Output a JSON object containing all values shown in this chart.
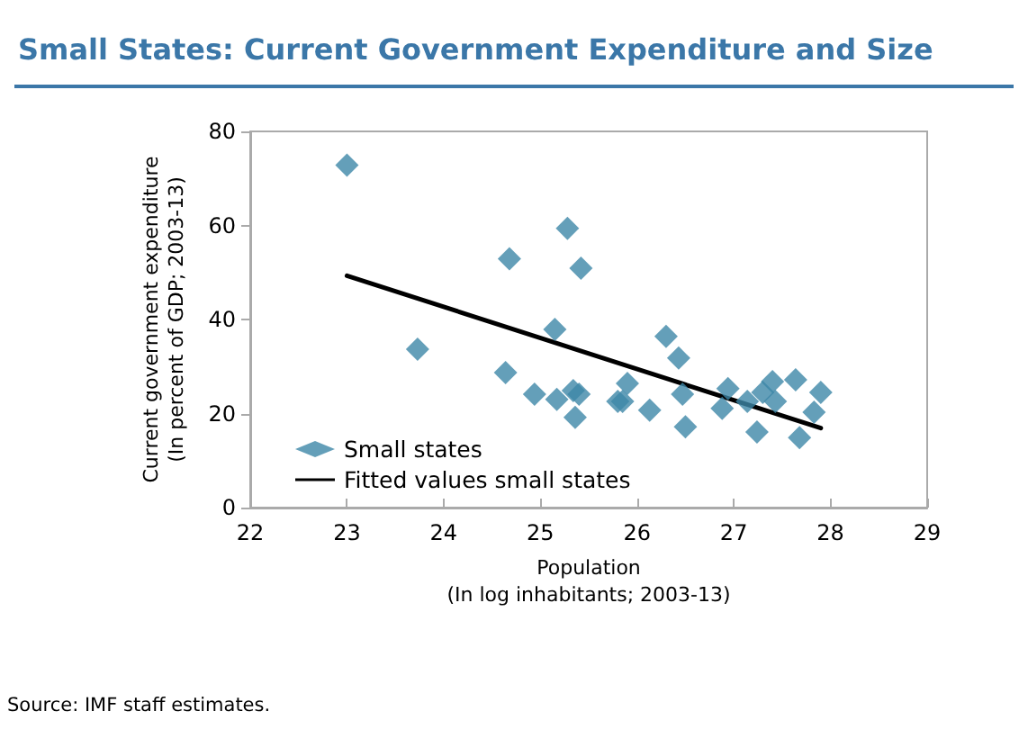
{
  "chart_data": {
    "type": "scatter",
    "title": "Small States: Current Government Expenditure and Size",
    "xlabel": "Population\n(In log inhabitants; 2003-13)",
    "ylabel": "Current government expenditure\n(In percent of GDP; 2003-13)",
    "annotations": [
      "Source: IMF staff estimates."
    ],
    "series": [
      {
        "name": "Small states",
        "color": "#3d87a8",
        "marker": "diamond",
        "x": [
          23.0,
          23.73,
          24.68,
          24.64,
          24.94,
          25.28,
          25.42,
          25.15,
          25.17,
          25.34,
          25.4,
          25.36,
          25.8,
          25.85,
          25.9,
          26.13,
          26.3,
          26.43,
          26.47,
          26.5,
          26.94,
          26.88,
          27.14,
          27.24,
          27.3,
          27.4,
          27.43,
          27.64,
          27.68,
          27.83,
          27.9
        ],
        "values": [
          72.8,
          33.7,
          52.9,
          28.7,
          24.1,
          59.4,
          50.9,
          37.9,
          23.0,
          24.9,
          24.1,
          19.2,
          22.6,
          22.6,
          26.4,
          20.7,
          36.4,
          31.8,
          24.1,
          17.2,
          25.3,
          21.1,
          22.6,
          16.1,
          24.5,
          26.8,
          22.6,
          27.2,
          14.9,
          20.3,
          24.5
        ]
      },
      {
        "name": "Fitted values small states",
        "type": "line",
        "color": "#000000",
        "marker": "none",
        "line_style": "solid",
        "x": [
          23.0,
          27.9
        ],
        "values": [
          49.3,
          16.9
        ]
      }
    ],
    "xlim": [
      22,
      29
    ],
    "xticks": [
      22,
      23,
      24,
      25,
      26,
      27,
      28,
      29
    ],
    "ylim": [
      0,
      80
    ],
    "yticks": [
      0,
      20,
      40,
      60,
      80
    ],
    "grid": false,
    "legend": "bottom left"
  }
}
